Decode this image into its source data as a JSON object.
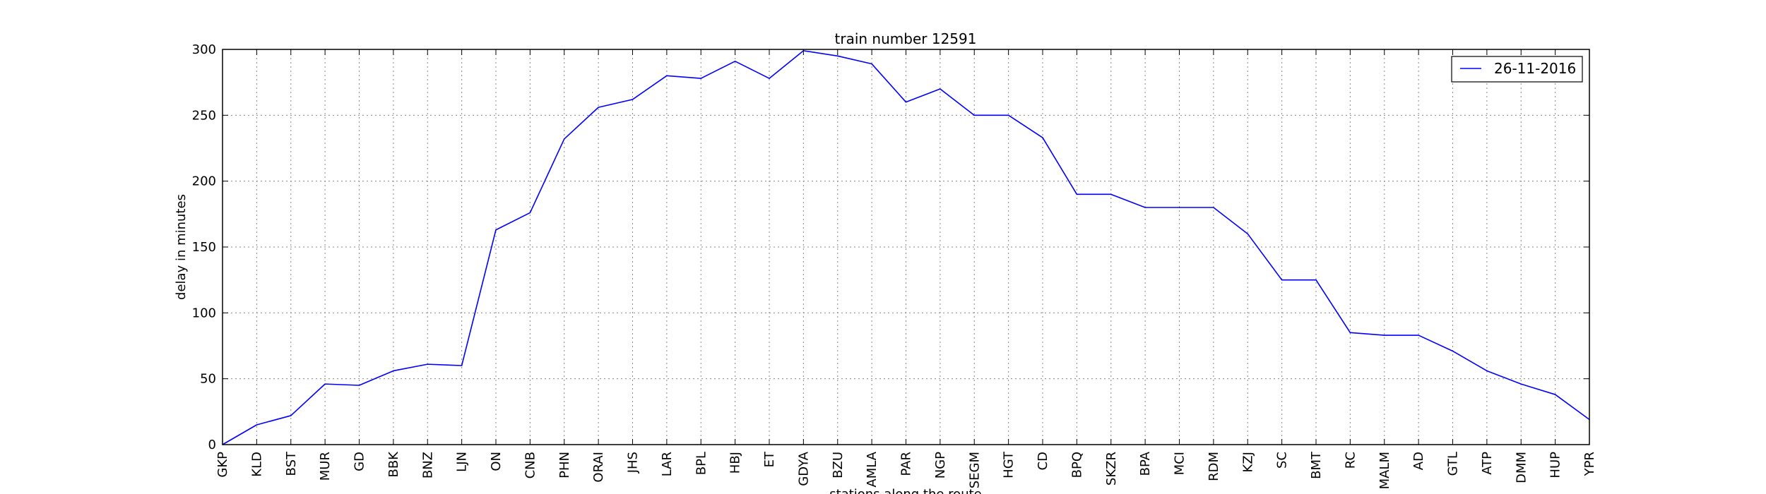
{
  "chart_data": {
    "type": "line",
    "title": "train number 12591",
    "xlabel": "stations along the route",
    "ylabel": "delay in minutes",
    "ylim": [
      0,
      300
    ],
    "yticks": [
      "0",
      "50",
      "100",
      "150",
      "200",
      "250",
      "300"
    ],
    "grid": true,
    "legend_position": "top-right",
    "categories": [
      "GKP",
      "KLD",
      "BST",
      "MUR",
      "GD",
      "BBK",
      "BNZ",
      "LJN",
      "ON",
      "CNB",
      "PHN",
      "ORAI",
      "JHS",
      "LAR",
      "BPL",
      "HBJ",
      "ET",
      "GDYA",
      "BZU",
      "AMLA",
      "PAR",
      "NGP",
      "SEGM",
      "HGT",
      "CD",
      "BPQ",
      "SKZR",
      "BPA",
      "MCI",
      "RDM",
      "KZJ",
      "SC",
      "BMT",
      "RC",
      "MALM",
      "AD",
      "GTL",
      "ATP",
      "DMM",
      "HUP",
      "YPR"
    ],
    "series": [
      {
        "name": "26-11-2016",
        "color": "#0000ff",
        "values": [
          0,
          15,
          22,
          46,
          45,
          56,
          61,
          60,
          163,
          176,
          232,
          256,
          262,
          280,
          278,
          291,
          278,
          299,
          295,
          289,
          260,
          270,
          250,
          250,
          233,
          190,
          190,
          180,
          180,
          180,
          160,
          125,
          125,
          85,
          83,
          83,
          71,
          56,
          46,
          38,
          19
        ]
      }
    ]
  }
}
